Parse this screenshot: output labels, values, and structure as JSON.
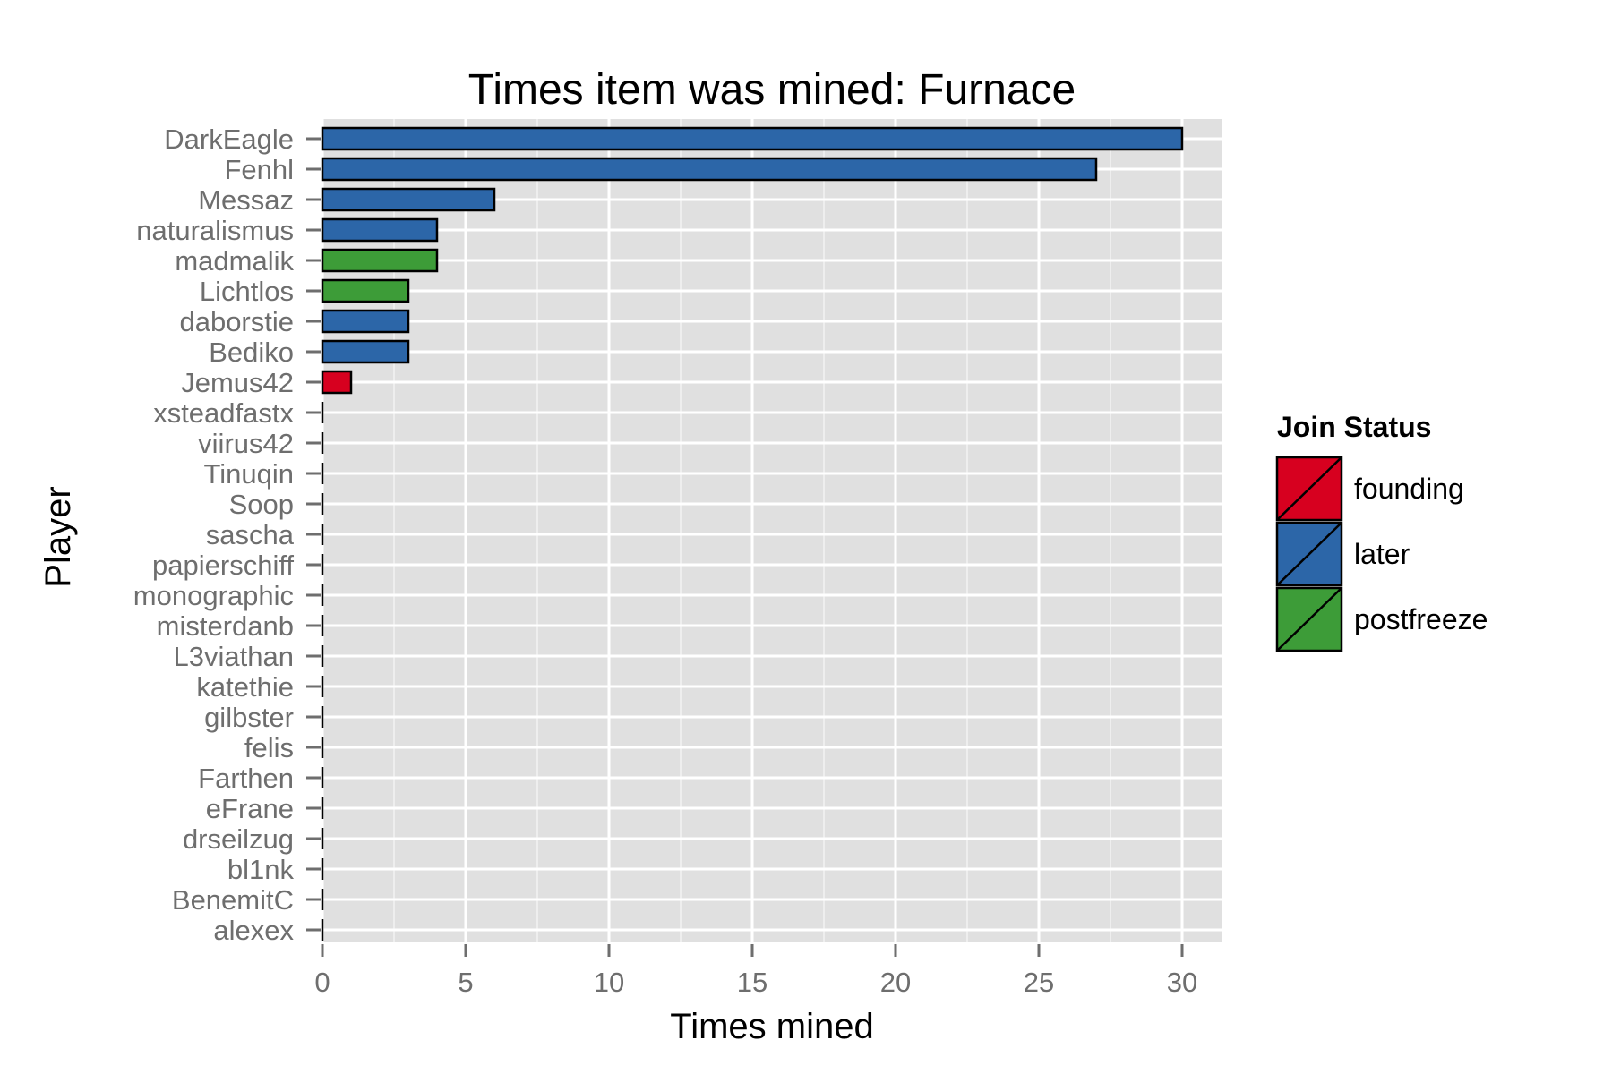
{
  "chart_data": {
    "type": "bar",
    "orientation": "horizontal",
    "title": "Times item was mined: Furnace",
    "xlabel": "Times mined",
    "ylabel": "Player",
    "xlim": [
      0,
      31.5
    ],
    "x_ticks": [
      0,
      5,
      10,
      15,
      20,
      25,
      30
    ],
    "grid": true,
    "legend": {
      "title": "Join Status",
      "placement": "right",
      "entries": [
        {
          "key": "founding",
          "label": "founding",
          "color": "#d7001f"
        },
        {
          "key": "later",
          "label": "later",
          "color": "#2c66a8"
        },
        {
          "key": "postfreeze",
          "label": "postfreeze",
          "color": "#3d9c38"
        }
      ]
    },
    "categories": [
      "DarkEagle",
      "Fenhl",
      "Messaz",
      "naturalismus",
      "madmalik",
      "Lichtlos",
      "daborstie",
      "Bediko",
      "Jemus42",
      "xsteadfastx",
      "viirus42",
      "Tinuqin",
      "Soop",
      "sascha",
      "papierschiff",
      "monographic",
      "misterdanb",
      "L3viathan",
      "katethie",
      "gilbster",
      "felis",
      "Farthen",
      "eFrane",
      "drseilzug",
      "bl1nk",
      "BenemitC",
      "alexex"
    ],
    "values": [
      30,
      27,
      6,
      4,
      4,
      3,
      3,
      3,
      1,
      0,
      0,
      0,
      0,
      0,
      0,
      0,
      0,
      0,
      0,
      0,
      0,
      0,
      0,
      0,
      0,
      0,
      0
    ],
    "status": [
      "later",
      "later",
      "later",
      "later",
      "postfreeze",
      "postfreeze",
      "later",
      "later",
      "founding",
      "later",
      "later",
      "later",
      "later",
      "later",
      "later",
      "later",
      "later",
      "later",
      "later",
      "later",
      "later",
      "later",
      "later",
      "later",
      "later",
      "later",
      "later"
    ]
  }
}
